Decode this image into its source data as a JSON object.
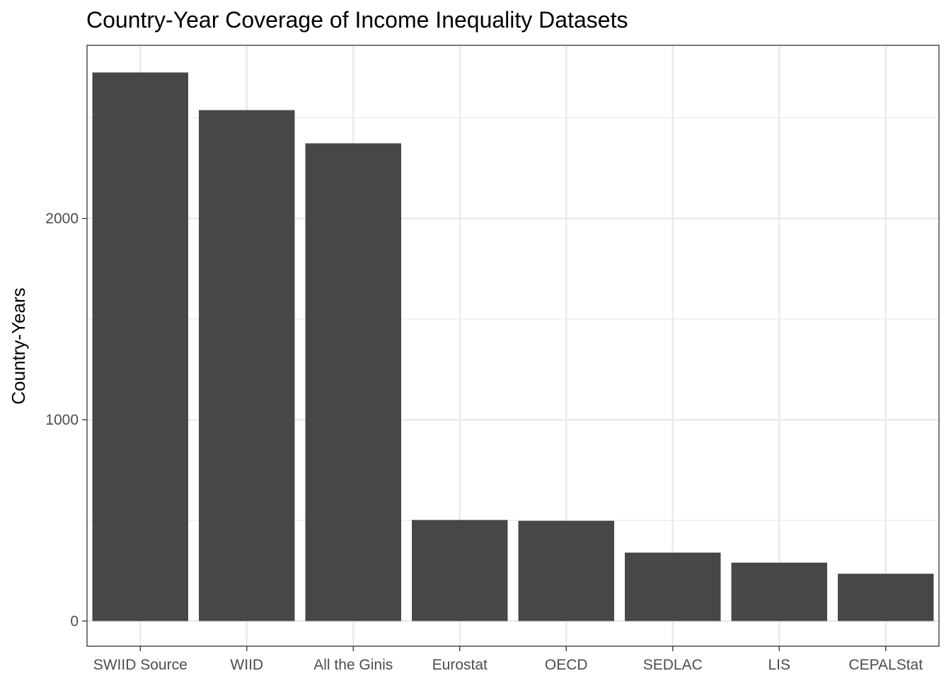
{
  "chart_data": {
    "type": "bar",
    "title": "Country-Year Coverage of Income Inequality Datasets",
    "xlabel": "",
    "ylabel": "Country-Years",
    "categories": [
      "SWIID Source",
      "WIID",
      "All the Ginis",
      "Eurostat",
      "OECD",
      "SEDLAC",
      "LIS",
      "CEPALStat"
    ],
    "values": [
      2725,
      2538,
      2373,
      502,
      498,
      340,
      290,
      235
    ],
    "yticks": [
      0,
      1000,
      2000
    ],
    "ytick_labels": [
      "0",
      "1000",
      "2000"
    ],
    "ylim": [
      -125,
      2860
    ],
    "grid": true,
    "legend": "none",
    "colors": {
      "bar": "#474747",
      "grid": "#ebebeb",
      "panel_border": "#333333",
      "text": "#000000",
      "tick_text": "#4d4d4d"
    }
  }
}
